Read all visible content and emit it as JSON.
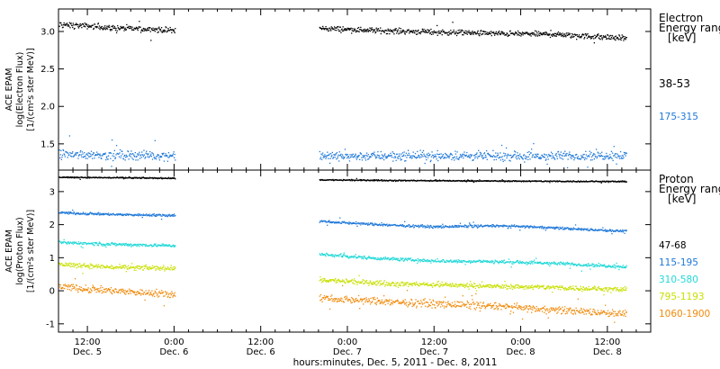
{
  "chart_data": {
    "type": "scatter",
    "x_axis": {
      "label": "hours:minutes, Dec.  5, 2011 - Dec.  8, 2011",
      "range_hours": [
        -16,
        66
      ],
      "ticks": [
        {
          "hour": -12,
          "time": "12:00",
          "day": "Dec. 5"
        },
        {
          "hour": 0,
          "time": "0:00",
          "day": "Dec. 6"
        },
        {
          "hour": 12,
          "time": "12:00",
          "day": "Dec. 6"
        },
        {
          "hour": 24,
          "time": "0:00",
          "day": "Dec. 7"
        },
        {
          "hour": 36,
          "time": "12:00",
          "day": "Dec. 7"
        },
        {
          "hour": 48,
          "time": "0:00",
          "day": "Dec. 8"
        },
        {
          "hour": 60,
          "time": "12:00",
          "day": "Dec. 8"
        }
      ]
    },
    "data_segments_hours": [
      [
        -16.5,
        0.1
      ],
      [
        20.1,
        62.6
      ]
    ],
    "panels": [
      {
        "id": "electron",
        "ylabel": [
          "ACE EPAM",
          "log(Electron Flux)",
          "[1/(cm²s ster MeV)]"
        ],
        "ylim": [
          1.15,
          3.3
        ],
        "yticks": [
          1.5,
          2.0,
          2.5,
          3.0
        ],
        "ytick_labels": [
          "1.5",
          "2.0",
          "2.5",
          "3.0"
        ],
        "legend_title": [
          "Electron",
          "Energy ranges",
          "[keV]"
        ],
        "series": [
          {
            "name": "38-53",
            "color": "#000000",
            "points": [
              [
                -16,
                3.1
              ],
              [
                -12,
                3.08
              ],
              [
                -8,
                3.05
              ],
              [
                -4,
                3.04
              ],
              [
                0,
                3.02
              ],
              [
                20,
                3.05
              ],
              [
                28,
                3.02
              ],
              [
                36,
                3.0
              ],
              [
                44,
                2.98
              ],
              [
                52,
                2.97
              ],
              [
                62,
                2.92
              ]
            ],
            "noise": 0.03
          },
          {
            "name": "175-315",
            "color": "#1f78d8",
            "points": [
              [
                -16,
                1.37
              ],
              [
                -8,
                1.36
              ],
              [
                0,
                1.35
              ],
              [
                20,
                1.34
              ],
              [
                36,
                1.35
              ],
              [
                52,
                1.34
              ],
              [
                62,
                1.36
              ]
            ],
            "noise": 0.05
          }
        ]
      },
      {
        "id": "proton",
        "ylabel": [
          "ACE EPAM",
          "log(Proton Flux)",
          "[1/(cm²s ster MeV)]"
        ],
        "ylim": [
          -1.25,
          3.65
        ],
        "yticks": [
          -1,
          0,
          1,
          2,
          3
        ],
        "ytick_labels": [
          "-1",
          "0",
          "1",
          "2",
          "3"
        ],
        "legend_title": [
          "Proton",
          "Energy ranges",
          "[keV]"
        ],
        "series": [
          {
            "name": "47-68",
            "color": "#000000",
            "points": [
              [
                -16,
                3.45
              ],
              [
                0,
                3.42
              ],
              [
                20,
                3.37
              ],
              [
                40,
                3.34
              ],
              [
                62,
                3.32
              ]
            ],
            "noise": 0.015
          },
          {
            "name": "115-195",
            "color": "#1f78d8",
            "points": [
              [
                -16,
                2.38
              ],
              [
                -8,
                2.32
              ],
              [
                0,
                2.3
              ],
              [
                20,
                2.12
              ],
              [
                28,
                2.02
              ],
              [
                36,
                1.95
              ],
              [
                44,
                1.98
              ],
              [
                50,
                1.95
              ],
              [
                56,
                1.88
              ],
              [
                62,
                1.82
              ]
            ],
            "noise": 0.03
          },
          {
            "name": "310-580",
            "color": "#22d8d8",
            "points": [
              [
                -16,
                1.48
              ],
              [
                -8,
                1.42
              ],
              [
                0,
                1.38
              ],
              [
                20,
                1.12
              ],
              [
                28,
                1.0
              ],
              [
                36,
                0.92
              ],
              [
                44,
                0.9
              ],
              [
                52,
                0.85
              ],
              [
                62,
                0.75
              ]
            ],
            "noise": 0.04
          },
          {
            "name": "795-1193",
            "color": "#c8e000",
            "points": [
              [
                -16,
                0.82
              ],
              [
                -8,
                0.72
              ],
              [
                0,
                0.7
              ],
              [
                20,
                0.35
              ],
              [
                28,
                0.25
              ],
              [
                36,
                0.2
              ],
              [
                44,
                0.15
              ],
              [
                52,
                0.12
              ],
              [
                62,
                0.05
              ]
            ],
            "noise": 0.06
          },
          {
            "name": "1060-1900",
            "color": "#f08a0a",
            "points": [
              [
                -16,
                0.15
              ],
              [
                -8,
                0.0
              ],
              [
                0,
                -0.08
              ],
              [
                20,
                -0.2
              ],
              [
                28,
                -0.3
              ],
              [
                36,
                -0.38
              ],
              [
                44,
                -0.45
              ],
              [
                52,
                -0.55
              ],
              [
                62,
                -0.68
              ]
            ],
            "noise": 0.09
          }
        ]
      }
    ]
  }
}
